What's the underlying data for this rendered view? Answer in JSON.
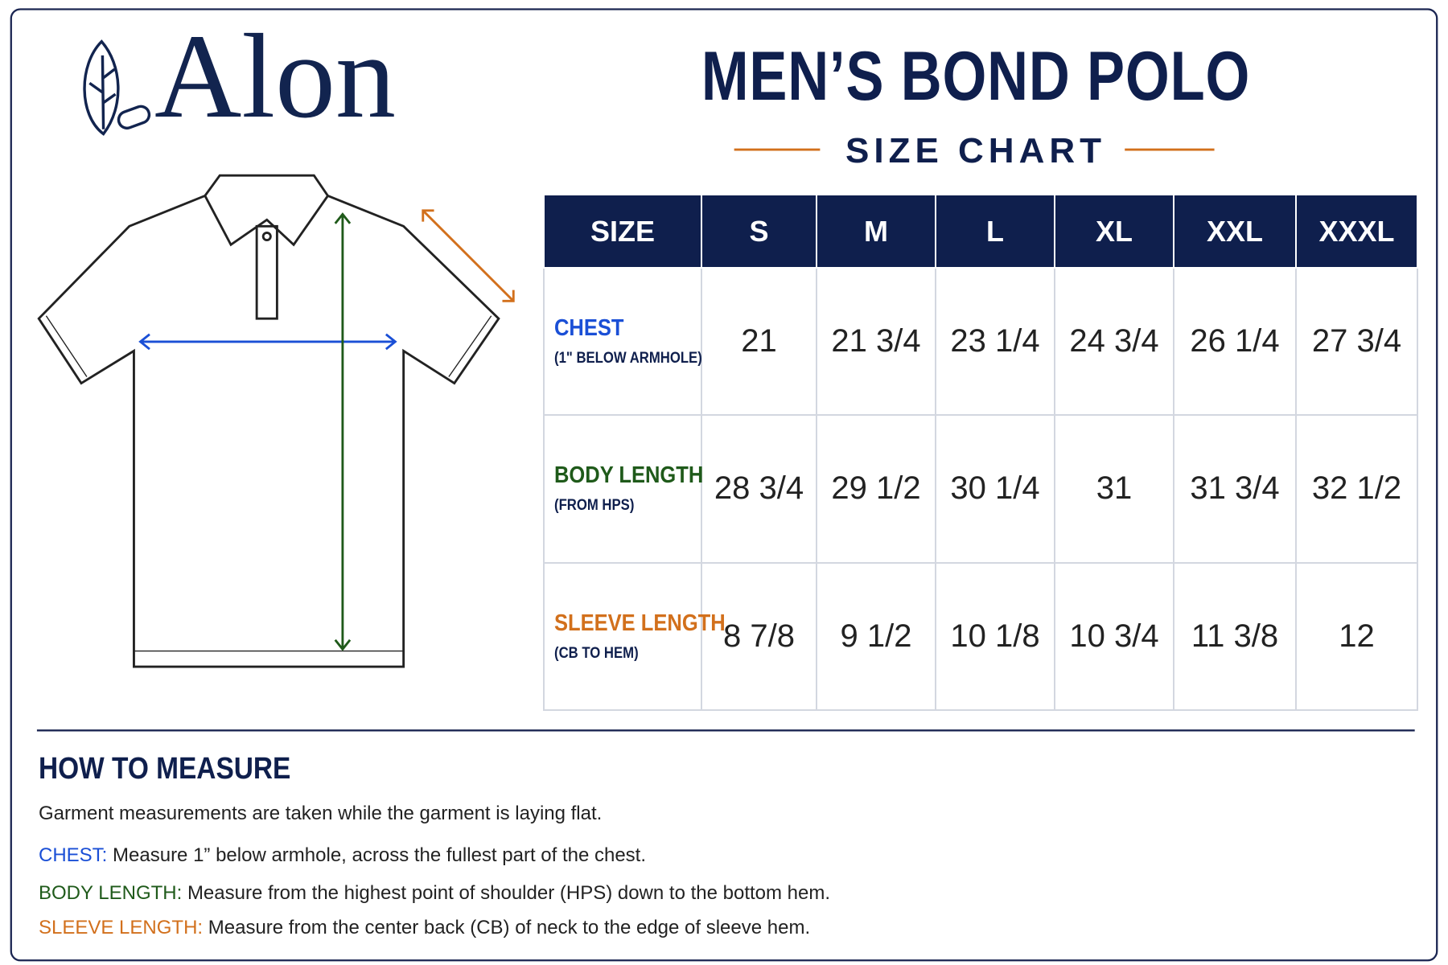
{
  "brand": "Alon",
  "header": {
    "title": "MEN’S BOND POLO",
    "subtitle": "SIZE CHART"
  },
  "table": {
    "header": [
      "SIZE",
      "S",
      "M",
      "L",
      "XL",
      "XXL",
      "XXXL"
    ],
    "rows": [
      {
        "label": "CHEST",
        "note": "(1\" BELOW ARMHOLE)",
        "values": [
          "21",
          "21 3/4",
          "23 1/4",
          "24 3/4",
          "26 1/4",
          "27 3/4"
        ]
      },
      {
        "label": "BODY LENGTH",
        "note": "(FROM HPS)",
        "values": [
          "28 3/4",
          "29 1/2",
          "30 1/4",
          "31",
          "31 3/4",
          "32 1/2"
        ]
      },
      {
        "label": "SLEEVE LENGTH",
        "note": "(CB TO HEM)",
        "values": [
          "8 7/8",
          "9 1/2",
          "10 1/8",
          "10 3/4",
          "11 3/8",
          "12"
        ]
      }
    ]
  },
  "measure": {
    "title": "HOW TO MEASURE",
    "intro": "Garment measurements are taken while the garment is laying flat.",
    "items": [
      {
        "label": "CHEST:",
        "text": "Measure 1” below armhole, across the fullest part of the chest."
      },
      {
        "label": "BODY LENGTH:",
        "text": "Measure from the highest point of shoulder (HPS) down to the bottom hem."
      },
      {
        "label": "SLEEVE LENGTH:",
        "text": "Measure from the center back (CB) of neck to the edge of sleeve hem."
      }
    ]
  }
}
